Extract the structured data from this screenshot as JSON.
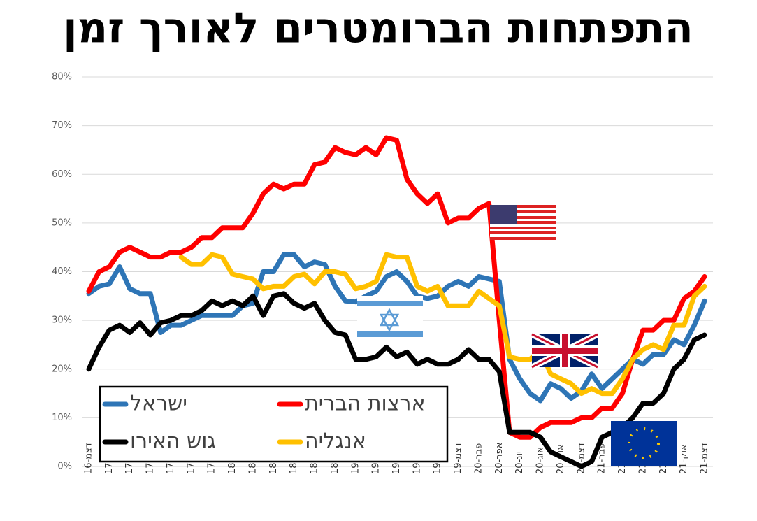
{
  "chart_data": {
    "type": "line",
    "title": "התפתחות הברומטרים לאורך זמן",
    "categories": [
      "דצמ-16",
      null,
      "פבר-17",
      null,
      "אפר-17",
      null,
      "יונ-17",
      null,
      "אוג-17",
      null,
      "אוק-17",
      null,
      "דצמ-17",
      null,
      "פבר-18",
      null,
      "אפר-18",
      null,
      "יונ-18",
      null,
      "אוג-18",
      null,
      "אוק-18",
      null,
      "דצמ-18",
      null,
      "פבר-19",
      null,
      "אפר-19",
      null,
      "יונ-19",
      null,
      "אוג-19",
      null,
      "אוק-19",
      null,
      "דצמ-19",
      null,
      "פבר-20",
      null,
      "אפר-20",
      null,
      "יונ-20",
      null,
      "אוג-20",
      null,
      "אוק-20",
      null,
      "דצמ-20",
      null,
      "פבר-21",
      null,
      "אפר-21",
      null,
      "יונ-21",
      null,
      "אוג-21",
      null,
      "אוק-21",
      null,
      "דצמ-21"
    ],
    "series": [
      {
        "name": "ישראל",
        "color": "#2e75b6",
        "values": [
          35.5,
          37,
          37.5,
          41,
          36.5,
          35.5,
          35.5,
          27.5,
          29,
          29,
          30,
          31,
          31,
          31,
          31,
          33,
          33.5,
          40,
          40,
          43.5,
          43.5,
          41,
          42,
          41.5,
          37,
          34,
          33.8,
          35,
          36,
          39,
          40,
          38,
          35,
          34.5,
          35,
          37,
          38,
          37,
          39,
          38.5,
          38,
          22,
          18,
          15,
          13.5,
          17,
          16,
          14,
          15.5,
          19,
          16,
          18,
          20,
          22,
          21,
          23,
          23,
          26,
          25,
          29,
          34
        ]
      },
      {
        "name": "ארצות הברית",
        "color": "#ff0000",
        "values": [
          36,
          40,
          41,
          44,
          45,
          44,
          43,
          43,
          44,
          44,
          45,
          47,
          47,
          49,
          49,
          49,
          52,
          56,
          58,
          57,
          58,
          58,
          62,
          62.5,
          65.5,
          64.5,
          64,
          65.5,
          64,
          67.5,
          67,
          59,
          56,
          54,
          56,
          50,
          51,
          51,
          53,
          54,
          30,
          7,
          6,
          6,
          8,
          9,
          9,
          9,
          10,
          10,
          12,
          12,
          15,
          22,
          28,
          28,
          30,
          30,
          34.5,
          36,
          39
        ]
      },
      {
        "name": "גוש האירו",
        "color": "#000000",
        "values": [
          20,
          24.5,
          28,
          29,
          27.5,
          29.5,
          27,
          29.5,
          30,
          31,
          31,
          32,
          34,
          33,
          34,
          33,
          35,
          31,
          35,
          35.5,
          33.5,
          32.5,
          33.5,
          30,
          27.5,
          27,
          22,
          22,
          22.5,
          24.5,
          22.5,
          23.5,
          21,
          22,
          21,
          21,
          22,
          24,
          22,
          22,
          19.5,
          7,
          7,
          7,
          6,
          3,
          2,
          1,
          0,
          1,
          6,
          7,
          8,
          10,
          13,
          13,
          15,
          20,
          22,
          26,
          27
        ]
      },
      {
        "name": "אנגליה",
        "color": "#ffc000",
        "values": [
          null,
          null,
          null,
          null,
          null,
          null,
          null,
          null,
          null,
          43,
          41.5,
          41.5,
          43.5,
          43,
          39.5,
          39,
          38.5,
          36.5,
          37,
          37,
          39,
          39.5,
          37.5,
          40,
          40,
          39.5,
          36.5,
          37,
          38,
          43.5,
          43,
          43,
          37,
          36,
          37,
          33,
          33,
          33,
          36,
          34.5,
          33,
          22.5,
          22,
          22,
          24,
          19,
          18,
          17,
          15,
          16,
          15,
          15,
          18,
          22,
          24,
          25,
          24,
          29,
          29,
          35,
          37
        ]
      }
    ],
    "ylim": [
      0,
      80
    ],
    "yticks": [
      {
        "value": 0,
        "label": "0%"
      },
      {
        "value": 10,
        "label": "10%"
      },
      {
        "value": 20,
        "label": "20%"
      },
      {
        "value": 30,
        "label": "30%"
      },
      {
        "value": 40,
        "label": "40%"
      },
      {
        "value": 50,
        "label": "50%"
      },
      {
        "value": 60,
        "label": "60%"
      },
      {
        "value": 70,
        "label": "70%"
      },
      {
        "value": 80,
        "label": "80%"
      }
    ],
    "grid": true
  }
}
